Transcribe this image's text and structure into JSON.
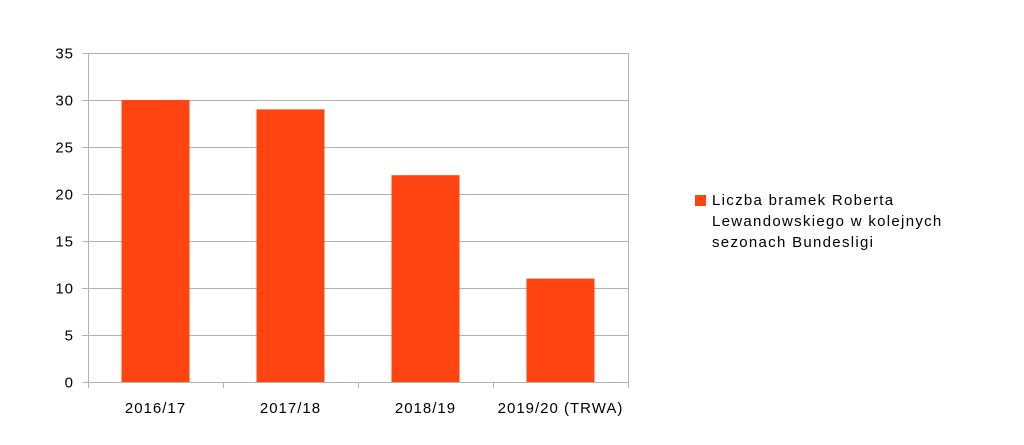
{
  "chart_data": {
    "type": "bar",
    "categories": [
      "2016/17",
      "2017/18",
      "2018/19",
      "2019/20 (TRWA)"
    ],
    "series": [
      {
        "name": "Liczba bramek Roberta Lewandowskiego w kolejnych sezonach Bundesligi",
        "values": [
          30,
          29,
          22,
          11
        ],
        "color": "#ff4411"
      }
    ],
    "ylim": [
      0,
      35
    ],
    "yticks": [
      0,
      5,
      10,
      15,
      20,
      25,
      30,
      35
    ],
    "ytick_labels": [
      "0",
      "5",
      "10",
      "15",
      "20",
      "25",
      "30",
      "35"
    ],
    "grid": true,
    "legend_position": "right",
    "gridline_color": "#b3b3b3",
    "axis_color": "#b3b3b3"
  }
}
